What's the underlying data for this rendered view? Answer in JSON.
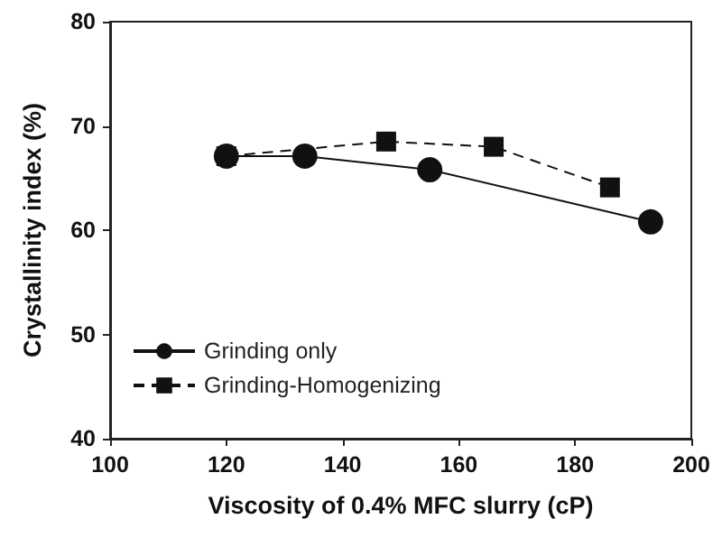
{
  "chart_data": {
    "type": "line",
    "xlabel": "Viscosity of 0.4% MFC slurry (cP)",
    "ylabel": "Crystallinity index (%)",
    "xlim": [
      100,
      200
    ],
    "xticks": [
      100,
      120,
      140,
      160,
      180,
      200
    ],
    "ylim": [
      40,
      80
    ],
    "yticks": [
      40,
      50,
      60,
      70,
      80
    ],
    "grid": false,
    "legend": "bottom left",
    "series": [
      {
        "name": "Grinding only",
        "color": "#111111",
        "marker": "circle",
        "line_style": "solid",
        "x": [
          120,
          133.5,
          155,
          193
        ],
        "values": [
          67.1,
          67.1,
          65.8,
          60.8
        ]
      },
      {
        "name": "Grinding-Homogenizing",
        "color": "#111111",
        "marker": "square",
        "line_style": "dashed",
        "x": [
          120,
          147.5,
          166,
          186
        ],
        "values": [
          67.1,
          68.5,
          68.0,
          64.1
        ]
      }
    ]
  }
}
